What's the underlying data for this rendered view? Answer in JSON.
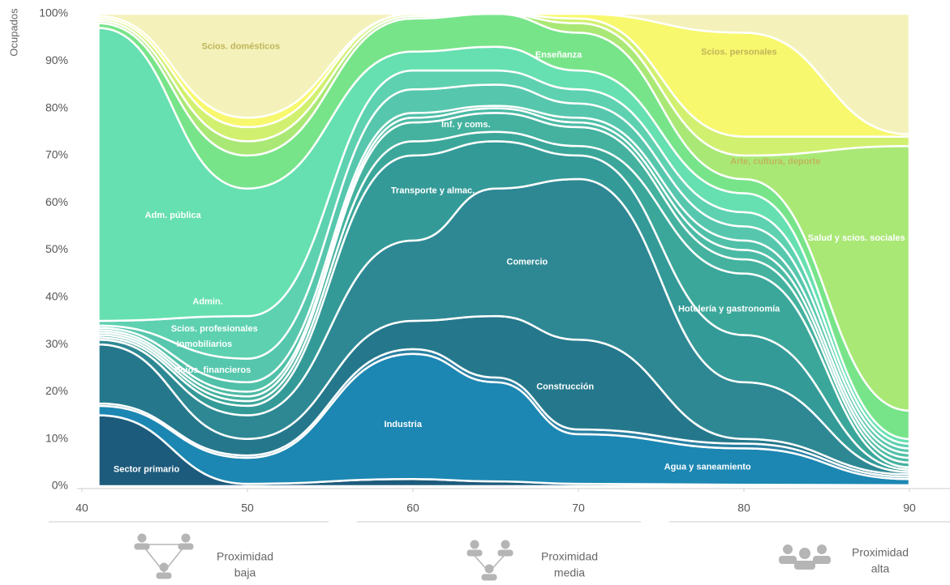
{
  "chart_data": {
    "type": "stacked_area",
    "y_axis_label": "Ocupados",
    "x": [
      41,
      50,
      60,
      65,
      70,
      80,
      90
    ],
    "xlim": [
      40,
      90
    ],
    "xticks": [
      40,
      50,
      60,
      70,
      80,
      90
    ],
    "ylim": [
      0,
      100
    ],
    "yticks": [
      {
        "value": 0,
        "label": "0%"
      },
      {
        "value": 10,
        "label": "10%"
      },
      {
        "value": 20,
        "label": "20%"
      },
      {
        "value": 30,
        "label": "30%"
      },
      {
        "value": 40,
        "label": "40%"
      },
      {
        "value": 50,
        "label": "50%"
      },
      {
        "value": 60,
        "label": "60%"
      },
      {
        "value": 70,
        "label": "70%"
      },
      {
        "value": 80,
        "label": "80%"
      },
      {
        "value": 90,
        "label": "90%"
      },
      {
        "value": 100,
        "label": "100%"
      }
    ],
    "grid": false,
    "series": [
      {
        "name": "Sector primario",
        "color": "#1d5b7c",
        "values": [
          15,
          0.5,
          1.5,
          1,
          0.5,
          0.3,
          0.2
        ]
      },
      {
        "name": "Industria",
        "color": "#1c87b2",
        "values": [
          2,
          5.5,
          26.5,
          21,
          10.5,
          7.7,
          1.3
        ]
      },
      {
        "name": "Agua y saneamiento",
        "color": "#2a80a2",
        "values": [
          0.5,
          0.5,
          1,
          1,
          1,
          1,
          0.5
        ]
      },
      {
        "name": "Construcción",
        "color": "#25788c",
        "values": [
          12.5,
          3.5,
          6,
          13,
          19,
          1,
          0.5
        ]
      },
      {
        "name": "Comercio",
        "color": "#2e8894",
        "values": [
          1,
          5,
          17,
          27,
          34,
          12,
          0.5
        ]
      },
      {
        "name": "Transporte y almac.",
        "color": "#339a98",
        "values": [
          0.5,
          2,
          18,
          10,
          5,
          10,
          0.5
        ]
      },
      {
        "name": "Hotelería y gastronomía",
        "color": "#3aa79a",
        "values": [
          0.5,
          1,
          3,
          2,
          2,
          13,
          0.5
        ]
      },
      {
        "name": "Inf. y coms.",
        "color": "#44b29f",
        "values": [
          0.5,
          1,
          4,
          4,
          4,
          3,
          1
        ]
      },
      {
        "name": "Scios. financieros",
        "color": "#4bbaa4",
        "values": [
          0.5,
          1,
          1,
          1,
          1,
          2,
          1
        ]
      },
      {
        "name": "Inmobiliarios",
        "color": "#50c0a8",
        "values": [
          0.5,
          2,
          1,
          0.5,
          1,
          2,
          1
        ]
      },
      {
        "name": "Scios. profesionales",
        "color": "#56c7ad",
        "values": [
          0.5,
          5,
          5,
          4.5,
          3,
          3,
          1
        ]
      },
      {
        "name": "Admin.",
        "color": "#5dd1b0",
        "values": [
          1,
          9,
          4,
          3,
          3,
          3,
          1
        ]
      },
      {
        "name": "Adm. pública",
        "color": "#66e0b0",
        "values": [
          62,
          27,
          4,
          5,
          4,
          4,
          1
        ]
      },
      {
        "name": "Enseñanza",
        "color": "#78e48a",
        "values": [
          1,
          7,
          7,
          7,
          8,
          3,
          6
        ]
      },
      {
        "name": "Salud y scios. sociales",
        "color": "#aae876",
        "values": [
          0.5,
          3,
          0.5,
          0,
          2,
          5,
          56
        ]
      },
      {
        "name": "Arte, cultura, deporte",
        "color": "#d2f070",
        "values": [
          0.5,
          3,
          0.5,
          0,
          1,
          4,
          2
        ]
      },
      {
        "name": "Scios. personales",
        "color": "#f8f86e",
        "values": [
          0.5,
          2,
          0,
          0,
          1,
          22,
          0.5
        ]
      },
      {
        "name": "Scios. domésticos",
        "color": "#f4f2ba",
        "values": [
          0.5,
          22,
          0,
          0,
          0,
          4,
          25.5
        ]
      }
    ],
    "annotations": [
      [
        "Proximidad",
        "baja"
      ],
      [
        "Proximidad",
        "media"
      ],
      [
        "Proximidad",
        "alta"
      ]
    ]
  }
}
